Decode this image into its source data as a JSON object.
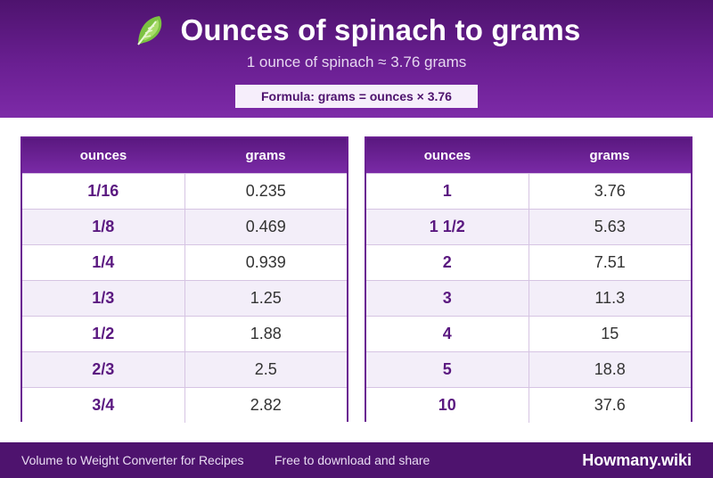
{
  "header": {
    "icon": "spinach-leaf-icon",
    "title": "Ounces of spinach to grams",
    "subtitle": "1 ounce of spinach ≈ 3.76 grams",
    "formula": "Formula: grams = ounces × 3.76"
  },
  "tables": [
    {
      "headers": [
        "ounces",
        "grams"
      ],
      "rows": [
        [
          "1/16",
          "0.235"
        ],
        [
          "1/8",
          "0.469"
        ],
        [
          "1/4",
          "0.939"
        ],
        [
          "1/3",
          "1.25"
        ],
        [
          "1/2",
          "1.88"
        ],
        [
          "2/3",
          "2.5"
        ],
        [
          "3/4",
          "2.82"
        ]
      ]
    },
    {
      "headers": [
        "ounces",
        "grams"
      ],
      "rows": [
        [
          "1",
          "3.76"
        ],
        [
          "1 1/2",
          "5.63"
        ],
        [
          "2",
          "7.51"
        ],
        [
          "3",
          "11.3"
        ],
        [
          "4",
          "15"
        ],
        [
          "5",
          "18.8"
        ],
        [
          "10",
          "37.6"
        ]
      ]
    }
  ],
  "footer": {
    "left": "Volume to Weight Converter for Recipes",
    "middle": "Free to download and share",
    "brand": "Howmany.wiki"
  },
  "colors": {
    "brand_purple": "#6a1f92",
    "dark_purple": "#4e136e",
    "row_alt": "#f3eef9"
  }
}
